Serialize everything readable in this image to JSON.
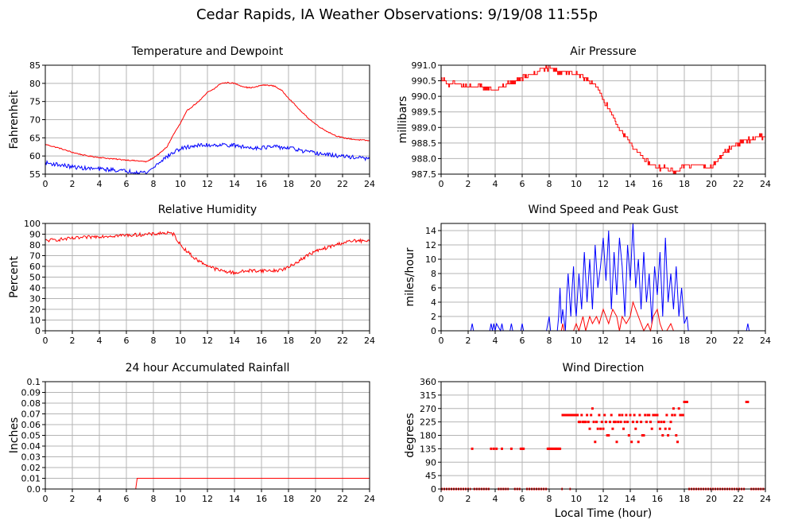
{
  "page": {
    "title": "Cedar Rapids, IA Weather Observations: 9/19/08 11:55p"
  },
  "chart_data": [
    {
      "id": "temp",
      "type": "line",
      "title": "Temperature and Dewpoint",
      "xlabel": "",
      "ylabel": "Fahrenheit",
      "xlim": [
        0,
        24
      ],
      "ylim": [
        55,
        85
      ],
      "xticks": [
        0,
        2,
        4,
        6,
        8,
        10,
        12,
        14,
        16,
        18,
        20,
        22,
        24
      ],
      "yticks": [
        55,
        60,
        65,
        70,
        75,
        80,
        85
      ],
      "ytick_labels": [
        "55",
        "60",
        "65",
        "70",
        "75",
        "80",
        "85"
      ],
      "grid": true,
      "series": [
        {
          "color": "#ff0000",
          "jitter": 0.15,
          "x": [
            0,
            1,
            2,
            3,
            4,
            5,
            6,
            7,
            7.5,
            8,
            8.5,
            9,
            9.5,
            10,
            10.5,
            11,
            11.5,
            12,
            12.5,
            13,
            13.5,
            14,
            14.5,
            15,
            15.5,
            16,
            16.5,
            17,
            17.5,
            18,
            18.5,
            19,
            19.5,
            20,
            20.5,
            21,
            21.5,
            22,
            23,
            24
          ],
          "y": [
            63.2,
            62.2,
            61,
            60.1,
            59.6,
            59.2,
            58.9,
            58.6,
            58.4,
            59.5,
            60.8,
            62.5,
            66,
            69,
            72.5,
            74,
            75.5,
            77.5,
            78.5,
            80,
            80.2,
            80,
            79.3,
            78.8,
            78.9,
            79.5,
            79.5,
            79.2,
            78,
            76,
            74,
            72,
            70.3,
            68.8,
            67.5,
            66.5,
            65.6,
            65,
            64.5,
            64.2
          ]
        },
        {
          "color": "#0000ff",
          "jitter": 0.55,
          "x": [
            0,
            1,
            2,
            3,
            4,
            5,
            6,
            7,
            7.5,
            8,
            8.5,
            9,
            9.5,
            10,
            10.5,
            11,
            12,
            13,
            14,
            15,
            16,
            17,
            18,
            18.5,
            19,
            20,
            21,
            22,
            23,
            24
          ],
          "y": [
            58.1,
            57.6,
            57,
            56.6,
            56.4,
            56.2,
            55.8,
            55.6,
            55.4,
            56.8,
            58.5,
            59.8,
            61,
            62,
            62.4,
            62.8,
            63,
            63.1,
            62.9,
            62.3,
            62.3,
            62.5,
            62.2,
            61.9,
            61.3,
            60.8,
            60.3,
            59.9,
            59.6,
            59.2
          ]
        }
      ]
    },
    {
      "id": "pressure",
      "type": "line",
      "title": "Air Pressure",
      "xlabel": "",
      "ylabel": "millibars",
      "xlim": [
        0,
        24
      ],
      "ylim": [
        987.5,
        991.0
      ],
      "xticks": [
        0,
        2,
        4,
        6,
        8,
        10,
        12,
        14,
        16,
        18,
        20,
        22,
        24
      ],
      "yticks": [
        987.5,
        988.0,
        988.5,
        989.0,
        989.5,
        990.0,
        990.5,
        991.0
      ],
      "ytick_labels": [
        "987.5",
        "988.0",
        "988.5",
        "989.0",
        "989.5",
        "990.0",
        "990.5",
        "991.0"
      ],
      "grid": true,
      "series": [
        {
          "color": "#ff0000",
          "step": true,
          "jitter": 0.07,
          "x": [
            0,
            0.5,
            1,
            2,
            3,
            4,
            4.5,
            5,
            6,
            6.5,
            7,
            7.5,
            8,
            8.5,
            9,
            10,
            11,
            11.5,
            12,
            12.5,
            13,
            13.5,
            14,
            14.5,
            15,
            15.5,
            16,
            16.5,
            17,
            17.5,
            18,
            19,
            20,
            20.5,
            21,
            21.5,
            22,
            22.5,
            23,
            23.5,
            24
          ],
          "y": [
            990.6,
            990.4,
            990.4,
            990.3,
            990.3,
            990.2,
            990.3,
            990.4,
            990.6,
            990.7,
            990.7,
            990.9,
            990.9,
            990.8,
            990.8,
            990.7,
            990.5,
            990.3,
            989.9,
            989.5,
            989.1,
            988.8,
            988.5,
            988.2,
            988.0,
            987.8,
            987.7,
            987.7,
            987.6,
            987.6,
            987.8,
            987.8,
            987.7,
            988.0,
            988.2,
            988.4,
            988.5,
            988.6,
            988.6,
            988.7,
            988.7
          ]
        }
      ]
    },
    {
      "id": "humidity",
      "type": "line",
      "title": "Relative Humidity",
      "xlabel": "",
      "ylabel": "Percent",
      "xlim": [
        0,
        24
      ],
      "ylim": [
        0,
        100
      ],
      "xticks": [
        0,
        2,
        4,
        6,
        8,
        10,
        12,
        14,
        16,
        18,
        20,
        22,
        24
      ],
      "yticks": [
        0,
        10,
        20,
        30,
        40,
        50,
        60,
        70,
        80,
        90,
        100
      ],
      "ytick_labels": [
        "0",
        "10",
        "20",
        "30",
        "40",
        "50",
        "60",
        "70",
        "80",
        "90",
        "100"
      ],
      "grid": true,
      "series": [
        {
          "color": "#ff0000",
          "jitter": 1.6,
          "x": [
            0,
            1,
            2,
            3,
            4,
            5,
            6,
            7,
            8,
            8.5,
            9,
            9.5,
            10,
            10.5,
            11,
            11.5,
            12,
            12.5,
            13,
            13.5,
            14,
            14.5,
            15,
            16,
            17,
            17.5,
            18,
            18.5,
            19,
            19.5,
            20,
            21,
            22,
            23,
            24
          ],
          "y": [
            84,
            85,
            86,
            87,
            88,
            88.5,
            89,
            89.5,
            90,
            91,
            91,
            90,
            80,
            74,
            68,
            64,
            61,
            58,
            56,
            55,
            54,
            55,
            56,
            56,
            56,
            57,
            59,
            63,
            67,
            71,
            74,
            78,
            82,
            84,
            83
          ]
        }
      ]
    },
    {
      "id": "wind",
      "type": "line",
      "title": "Wind Speed and Peak Gust",
      "xlabel": "",
      "ylabel": "miles/hour",
      "xlim": [
        0,
        24
      ],
      "ylim": [
        0,
        15
      ],
      "xticks": [
        0,
        2,
        4,
        6,
        8,
        10,
        12,
        14,
        16,
        18,
        20,
        22,
        24
      ],
      "yticks": [
        0,
        2,
        4,
        6,
        8,
        10,
        12,
        14
      ],
      "ytick_labels": [
        "0",
        "2",
        "4",
        "6",
        "8",
        "10",
        "12",
        "14"
      ],
      "grid": true,
      "series": [
        {
          "color": "#0000ff",
          "x": [
            0,
            2.2,
            2.3,
            2.4,
            3.6,
            3.7,
            3.8,
            3.9,
            4.0,
            4.1,
            4.4,
            4.5,
            4.6,
            5.1,
            5.2,
            5.3,
            5.9,
            6.0,
            6.1,
            7.8,
            7.9,
            8.0,
            8.1,
            8.6,
            8.7,
            8.8,
            8.9,
            9.0,
            9.2,
            9.3,
            9.4,
            9.6,
            9.7,
            9.8,
            9.9,
            10.0,
            10.2,
            10.4,
            10.6,
            10.8,
            11.0,
            11.2,
            11.4,
            11.6,
            11.8,
            12.0,
            12.2,
            12.4,
            12.6,
            12.8,
            13.0,
            13.2,
            13.4,
            13.6,
            13.8,
            14.0,
            14.2,
            14.4,
            14.6,
            14.8,
            15.0,
            15.2,
            15.4,
            15.6,
            15.8,
            16.0,
            16.2,
            16.4,
            16.6,
            16.8,
            17.0,
            17.2,
            17.4,
            17.6,
            17.8,
            18.0,
            18.2,
            18.3,
            22.6,
            22.7,
            22.8,
            22.9,
            24
          ],
          "y": [
            0,
            0,
            1,
            0,
            0,
            1,
            0,
            1,
            0,
            1,
            0,
            1,
            0,
            0,
            1,
            0,
            0,
            1,
            0,
            0,
            1,
            2,
            0,
            0,
            2,
            6,
            1,
            3,
            0,
            5,
            8,
            2,
            6,
            9,
            4,
            2,
            8,
            3,
            11,
            4,
            10,
            3,
            12,
            6,
            9,
            13,
            7,
            14,
            3,
            11,
            5,
            13,
            9,
            2,
            12,
            7,
            15,
            6,
            10,
            3,
            11,
            4,
            8,
            1,
            9,
            5,
            11,
            2,
            13,
            4,
            8,
            3,
            9,
            2,
            6,
            1,
            2,
            0,
            0,
            1,
            0,
            0,
            0
          ]
        },
        {
          "color": "#ff0000",
          "x": [
            0,
            8.9,
            9.0,
            9.1,
            9.2,
            9.3,
            9.8,
            10.0,
            10.2,
            10.5,
            10.7,
            11.0,
            11.2,
            11.5,
            11.7,
            12.0,
            12.2,
            12.4,
            12.7,
            13.0,
            13.2,
            13.4,
            13.7,
            14.0,
            14.2,
            14.4,
            14.6,
            14.8,
            15.0,
            15.3,
            15.5,
            15.7,
            16.0,
            16.2,
            16.4,
            16.7,
            17.0,
            17.2,
            17.4,
            17.6,
            17.8,
            24
          ],
          "y": [
            0,
            0,
            1,
            0,
            0,
            0,
            0,
            1,
            0,
            2,
            0,
            2,
            1,
            2,
            1,
            3,
            2,
            1,
            3,
            2,
            0,
            2,
            1,
            2,
            4,
            3,
            2,
            1,
            0,
            1,
            0,
            2,
            3,
            1,
            0,
            0,
            1,
            0,
            0,
            0,
            0,
            0
          ]
        }
      ]
    },
    {
      "id": "rain",
      "type": "line",
      "title": "24 hour Accumulated Rainfall",
      "xlabel": "",
      "ylabel": "Inches",
      "xlim": [
        0,
        24
      ],
      "ylim": [
        0,
        0.1
      ],
      "xticks": [
        0,
        2,
        4,
        6,
        8,
        10,
        12,
        14,
        16,
        18,
        20,
        22,
        24
      ],
      "yticks": [
        0,
        0.01,
        0.02,
        0.03,
        0.04,
        0.05,
        0.06,
        0.07,
        0.08,
        0.09,
        0.1
      ],
      "ytick_labels": [
        "0.0",
        "0.01",
        "0.02",
        "0.03",
        "0.04",
        "0.05",
        "0.06",
        "0.07",
        "0.08",
        "0.09",
        "0.1"
      ],
      "grid": true,
      "series": [
        {
          "color": "#ff0000",
          "x": [
            0,
            6.7,
            6.7,
            6.8,
            24
          ],
          "y": [
            0,
            0,
            0.001,
            0.01,
            0.01
          ]
        }
      ]
    },
    {
      "id": "direction",
      "type": "scatter",
      "title": "Wind Direction",
      "xlabel": "Local Time (hour)",
      "ylabel": "degrees",
      "xlim": [
        0,
        24
      ],
      "ylim": [
        0,
        360
      ],
      "xticks": [
        0,
        2,
        4,
        6,
        8,
        10,
        12,
        14,
        16,
        18,
        20,
        22,
        24
      ],
      "yticks": [
        0,
        45,
        90,
        135,
        180,
        225,
        270,
        315,
        360
      ],
      "ytick_labels": [
        "0",
        "45",
        "90",
        "135",
        "180",
        "225",
        "270",
        "315",
        "360"
      ],
      "grid": true,
      "calm_ranges": [
        [
          0,
          2.2
        ],
        [
          2.4,
          3.6
        ],
        [
          4.2,
          5.0
        ],
        [
          5.4,
          5.9
        ],
        [
          6.3,
          7.9
        ],
        [
          8.9,
          9.0
        ],
        [
          9.5,
          9.6
        ],
        [
          18.3,
          22.5
        ],
        [
          22.9,
          24
        ]
      ],
      "series": [
        {
          "color": "#ff0000",
          "x": [
            2.3,
            3.7,
            3.9,
            4.1,
            4.5,
            5.2,
            5.9,
            6.0,
            6.1,
            7.9,
            8.0,
            8.1,
            8.2,
            8.3,
            8.4,
            8.5,
            8.6,
            8.7,
            8.8,
            9.0,
            9.1,
            9.2,
            9.3,
            9.4,
            9.5,
            9.6,
            9.7,
            9.8,
            9.9,
            10.0,
            10.1,
            10.2,
            10.3,
            10.4,
            10.5,
            10.6,
            10.7,
            10.8,
            10.9,
            11.0,
            11.1,
            11.2,
            11.3,
            11.4,
            11.5,
            11.6,
            11.7,
            11.8,
            11.9,
            12.0,
            12.1,
            12.2,
            12.3,
            12.4,
            12.5,
            12.6,
            12.7,
            12.8,
            12.9,
            13.0,
            13.1,
            13.2,
            13.3,
            13.4,
            13.5,
            13.6,
            13.7,
            13.8,
            13.9,
            14.0,
            14.1,
            14.2,
            14.3,
            14.4,
            14.5,
            14.6,
            14.7,
            14.8,
            14.9,
            15.0,
            15.1,
            15.2,
            15.3,
            15.4,
            15.5,
            15.6,
            15.7,
            15.8,
            15.9,
            16.0,
            16.1,
            16.2,
            16.3,
            16.4,
            16.5,
            16.6,
            16.7,
            16.8,
            16.9,
            17.0,
            17.1,
            17.2,
            17.3,
            17.4,
            17.5,
            17.6,
            17.7,
            17.8,
            17.9,
            18.0,
            18.1,
            18.2,
            22.6,
            22.7
          ],
          "y": [
            135,
            135,
            135,
            135,
            135,
            135,
            135,
            135,
            135,
            135,
            135,
            135,
            135,
            135,
            135,
            135,
            135,
            135,
            135,
            248,
            248,
            248,
            248,
            248,
            248,
            248,
            248,
            248,
            248,
            248,
            248,
            225,
            225,
            248,
            225,
            225,
            225,
            248,
            225,
            202,
            248,
            270,
            225,
            158,
            225,
            202,
            248,
            202,
            225,
            202,
            248,
            225,
            180,
            180,
            225,
            248,
            202,
            225,
            225,
            158,
            225,
            248,
            225,
            248,
            202,
            225,
            248,
            225,
            180,
            248,
            158,
            225,
            248,
            202,
            225,
            158,
            248,
            225,
            180,
            180,
            248,
            225,
            248,
            248,
            225,
            202,
            248,
            248,
            248,
            248,
            225,
            202,
            225,
            180,
            225,
            202,
            248,
            180,
            202,
            225,
            248,
            270,
            248,
            180,
            158,
            270,
            248,
            248,
            248,
            292,
            292,
            292,
            292,
            292
          ]
        }
      ]
    }
  ]
}
